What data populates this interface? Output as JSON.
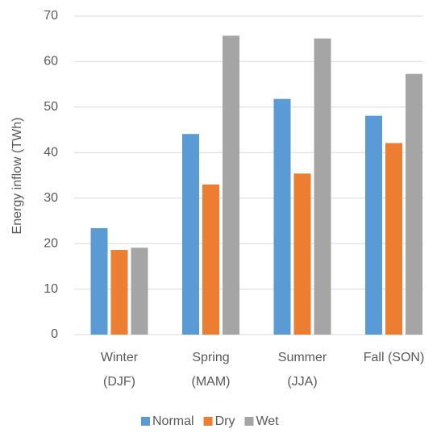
{
  "chart_data": {
    "type": "bar",
    "y_label": "Energy inflow (TWh)",
    "categories": [
      "Winter\n(DJF)",
      "Spring\n(MAM)",
      "Summer\n(JJA)",
      "Fall (SON)"
    ],
    "series": [
      {
        "name": "Normal",
        "color": "#5b9bd5",
        "values": [
          23.4,
          44.1,
          51.8,
          48.1
        ]
      },
      {
        "name": "Dry",
        "color": "#ed7d31",
        "values": [
          18.6,
          33.0,
          35.4,
          42.1
        ]
      },
      {
        "name": "Wet",
        "color": "#a5a5a5",
        "values": [
          19.1,
          65.7,
          65.1,
          57.3
        ]
      }
    ],
    "ylim": [
      0,
      70
    ],
    "yticks": [
      0,
      10,
      20,
      30,
      40,
      50,
      60,
      70
    ],
    "grid": true,
    "legend": "bottom"
  }
}
